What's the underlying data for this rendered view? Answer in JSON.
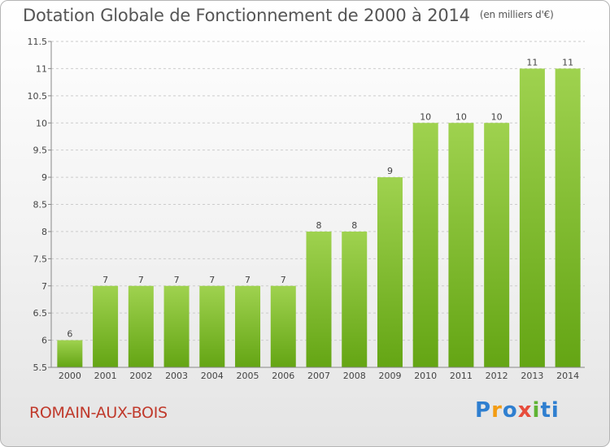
{
  "header": {
    "title": "Dotation Globale de Fonctionnement de 2000 à 2014",
    "unit": "(en milliers d'€)"
  },
  "footer": {
    "commune": "ROMAIN-AUX-BOIS",
    "logo": [
      "P",
      "r",
      "o",
      "x",
      "i",
      "t",
      "i"
    ]
  },
  "chart_data": {
    "type": "bar",
    "title": "Dotation Globale de Fonctionnement de 2000 à 2014",
    "subtitle": "(en milliers d'€)",
    "xlabel": "",
    "ylabel": "",
    "categories": [
      "2000",
      "2001",
      "2002",
      "2003",
      "2004",
      "2005",
      "2006",
      "2007",
      "2008",
      "2009",
      "2010",
      "2011",
      "2012",
      "2013",
      "2014"
    ],
    "values": [
      6,
      7,
      7,
      7,
      7,
      7,
      7,
      8,
      8,
      9,
      10,
      10,
      10,
      11,
      11
    ],
    "data_labels": [
      "6",
      "7",
      "7",
      "7",
      "7",
      "7",
      "7",
      "8",
      "8",
      "9",
      "10",
      "10",
      "10",
      "11",
      "11"
    ],
    "ylim": [
      5.5,
      11.5
    ],
    "yticks": [
      5.5,
      6,
      6.5,
      7,
      7.5,
      8,
      8.5,
      9,
      9.5,
      10,
      10.5,
      11,
      11.5
    ],
    "ytick_labels": [
      "5.5",
      "6",
      "6.5",
      "7",
      "7.5",
      "8",
      "8.5",
      "9",
      "9.5",
      "10",
      "10.5",
      "11",
      "11.5"
    ],
    "grid": true,
    "legend": "none",
    "colors": {
      "bar_top": "#9fd24f",
      "bar_bottom": "#64a514",
      "grid": "#cccccc"
    }
  }
}
